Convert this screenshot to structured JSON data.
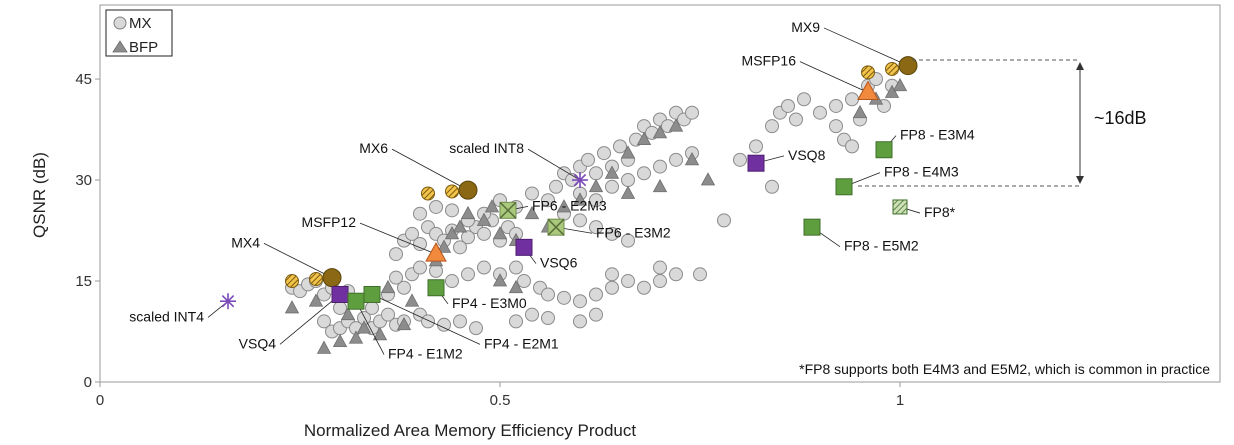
{
  "chart_data": {
    "type": "scatter",
    "xlabel": "Normalized Area Memory Efficiency Product",
    "ylabel": "QSNR (dB)",
    "xlim": [
      0,
      1.4
    ],
    "ylim": [
      0,
      56
    ],
    "xticks": [
      "0",
      "0.5",
      "1"
    ],
    "yticks": [
      "0",
      "15",
      "30",
      "45"
    ],
    "xtick_values": [
      0,
      0.5,
      1
    ],
    "ytick_values": [
      0,
      15,
      30,
      45
    ],
    "grid": false,
    "legend_position": "top-left",
    "legend": [
      "MX",
      "BFP"
    ],
    "footnote": "*FP8 supports both E4M3 and E5M2, which is common in practice",
    "gap_label": "~16dB",
    "colors": {
      "mx": "#d9d9d9",
      "bfp": "#8c8c8c",
      "gold": "#8b6914",
      "gold_light": "#e8b53a",
      "orange": "#f28a3e",
      "purple": "#7030a0",
      "green": "#5f9e3f",
      "green_light": "#a9c97c"
    },
    "mx_points": [
      [
        0.24,
        14
      ],
      [
        0.25,
        13.5
      ],
      [
        0.26,
        14.5
      ],
      [
        0.27,
        15
      ],
      [
        0.28,
        13
      ],
      [
        0.29,
        14
      ],
      [
        0.3,
        12.5
      ],
      [
        0.31,
        13.5
      ],
      [
        0.3,
        11
      ],
      [
        0.28,
        9
      ],
      [
        0.29,
        7.5
      ],
      [
        0.3,
        8
      ],
      [
        0.31,
        9
      ],
      [
        0.32,
        8
      ],
      [
        0.33,
        9.5
      ],
      [
        0.34,
        8
      ],
      [
        0.35,
        9
      ],
      [
        0.36,
        10
      ],
      [
        0.37,
        8.5
      ],
      [
        0.38,
        9
      ],
      [
        0.4,
        10
      ],
      [
        0.41,
        9
      ],
      [
        0.43,
        8.5
      ],
      [
        0.45,
        9
      ],
      [
        0.47,
        8
      ],
      [
        0.34,
        11
      ],
      [
        0.36,
        13
      ],
      [
        0.38,
        14
      ],
      [
        0.37,
        15.5
      ],
      [
        0.39,
        16
      ],
      [
        0.4,
        17
      ],
      [
        0.42,
        16.5
      ],
      [
        0.44,
        15
      ],
      [
        0.46,
        16
      ],
      [
        0.48,
        17
      ],
      [
        0.5,
        16
      ],
      [
        0.52,
        17
      ],
      [
        0.53,
        15
      ],
      [
        0.55,
        14
      ],
      [
        0.56,
        13
      ],
      [
        0.58,
        12.5
      ],
      [
        0.6,
        12
      ],
      [
        0.62,
        13
      ],
      [
        0.64,
        14
      ],
      [
        0.66,
        15
      ],
      [
        0.68,
        14
      ],
      [
        0.7,
        15
      ],
      [
        0.72,
        16
      ],
      [
        0.37,
        19
      ],
      [
        0.38,
        21
      ],
      [
        0.39,
        22
      ],
      [
        0.4,
        20.5
      ],
      [
        0.41,
        23
      ],
      [
        0.42,
        22
      ],
      [
        0.43,
        21
      ],
      [
        0.44,
        22.5
      ],
      [
        0.45,
        20
      ],
      [
        0.46,
        21.5
      ],
      [
        0.47,
        23
      ],
      [
        0.48,
        22
      ],
      [
        0.49,
        24
      ],
      [
        0.5,
        21
      ],
      [
        0.51,
        23
      ],
      [
        0.52,
        22
      ],
      [
        0.4,
        25
      ],
      [
        0.42,
        26
      ],
      [
        0.44,
        25.5
      ],
      [
        0.46,
        24
      ],
      [
        0.48,
        25
      ],
      [
        0.5,
        27
      ],
      [
        0.52,
        26
      ],
      [
        0.54,
        28
      ],
      [
        0.56,
        27
      ],
      [
        0.57,
        29
      ],
      [
        0.58,
        31
      ],
      [
        0.59,
        30
      ],
      [
        0.6,
        32
      ],
      [
        0.61,
        33
      ],
      [
        0.62,
        31
      ],
      [
        0.63,
        34
      ],
      [
        0.64,
        32
      ],
      [
        0.65,
        35
      ],
      [
        0.66,
        33
      ],
      [
        0.67,
        36
      ],
      [
        0.68,
        38
      ],
      [
        0.69,
        37
      ],
      [
        0.7,
        39
      ],
      [
        0.71,
        38
      ],
      [
        0.72,
        40
      ],
      [
        0.73,
        39
      ],
      [
        0.74,
        40
      ],
      [
        0.6,
        28
      ],
      [
        0.62,
        27
      ],
      [
        0.64,
        29
      ],
      [
        0.66,
        30
      ],
      [
        0.68,
        31
      ],
      [
        0.7,
        32
      ],
      [
        0.72,
        33
      ],
      [
        0.74,
        34
      ],
      [
        0.58,
        25
      ],
      [
        0.6,
        24
      ],
      [
        0.62,
        23
      ],
      [
        0.64,
        22
      ],
      [
        0.66,
        21
      ],
      [
        0.52,
        9
      ],
      [
        0.54,
        10
      ],
      [
        0.56,
        9.5
      ],
      [
        0.6,
        9
      ],
      [
        0.62,
        10
      ],
      [
        0.64,
        16
      ],
      [
        0.7,
        17
      ],
      [
        0.75,
        16
      ],
      [
        0.78,
        24
      ],
      [
        0.8,
        33
      ],
      [
        0.82,
        35
      ],
      [
        0.84,
        38
      ],
      [
        0.85,
        40
      ],
      [
        0.86,
        41
      ],
      [
        0.87,
        39
      ],
      [
        0.88,
        42
      ],
      [
        0.9,
        40
      ],
      [
        0.92,
        38
      ],
      [
        0.93,
        36
      ],
      [
        0.94,
        35
      ],
      [
        0.95,
        39
      ],
      [
        0.96,
        44
      ],
      [
        0.97,
        45
      ],
      [
        0.98,
        41
      ],
      [
        0.99,
        44
      ],
      [
        0.84,
        29
      ],
      [
        0.92,
        41
      ],
      [
        0.94,
        42
      ]
    ],
    "bfp_points": [
      [
        0.24,
        11
      ],
      [
        0.27,
        12
      ],
      [
        0.28,
        5
      ],
      [
        0.3,
        6
      ],
      [
        0.32,
        6.5
      ],
      [
        0.33,
        8
      ],
      [
        0.35,
        7
      ],
      [
        0.38,
        8.5
      ],
      [
        0.31,
        10
      ],
      [
        0.36,
        14
      ],
      [
        0.39,
        12
      ],
      [
        0.42,
        18
      ],
      [
        0.43,
        20
      ],
      [
        0.44,
        22
      ],
      [
        0.45,
        23
      ],
      [
        0.46,
        25
      ],
      [
        0.48,
        24
      ],
      [
        0.49,
        26
      ],
      [
        0.5,
        22
      ],
      [
        0.52,
        21
      ],
      [
        0.54,
        25
      ],
      [
        0.56,
        23
      ],
      [
        0.58,
        26
      ],
      [
        0.6,
        27
      ],
      [
        0.62,
        29
      ],
      [
        0.64,
        31
      ],
      [
        0.66,
        34
      ],
      [
        0.68,
        36
      ],
      [
        0.7,
        37
      ],
      [
        0.72,
        38
      ],
      [
        0.74,
        33
      ],
      [
        0.76,
        30
      ],
      [
        0.5,
        15
      ],
      [
        0.52,
        14
      ],
      [
        0.66,
        28
      ],
      [
        0.7,
        29
      ],
      [
        0.95,
        40
      ],
      [
        0.97,
        42
      ],
      [
        0.99,
        43
      ],
      [
        1.0,
        44
      ]
    ],
    "named_points": [
      {
        "name": "MX4",
        "x": 0.29,
        "y": 15.5,
        "marker": "big-circle",
        "color": "gold",
        "label": "MX4",
        "label_x": 0.2,
        "label_y": 20
      },
      {
        "name": "MX4-a",
        "x": 0.24,
        "y": 15,
        "marker": "stripe-circle",
        "color": "gold_light"
      },
      {
        "name": "MX4-b",
        "x": 0.27,
        "y": 15.3,
        "marker": "stripe-circle",
        "color": "gold_light"
      },
      {
        "name": "MX6",
        "x": 0.46,
        "y": 28.5,
        "marker": "big-circle",
        "color": "gold",
        "label": "MX6",
        "label_x": 0.36,
        "label_y": 34
      },
      {
        "name": "MX6-a",
        "x": 0.41,
        "y": 28,
        "marker": "stripe-circle",
        "color": "gold_light"
      },
      {
        "name": "MX6-b",
        "x": 0.44,
        "y": 28.3,
        "marker": "stripe-circle",
        "color": "gold_light"
      },
      {
        "name": "MX9",
        "x": 1.01,
        "y": 47,
        "marker": "big-circle",
        "color": "gold",
        "label": "MX9",
        "label_x": 0.9,
        "label_y": 52
      },
      {
        "name": "MX9-a",
        "x": 0.96,
        "y": 46,
        "marker": "stripe-circle",
        "color": "gold_light"
      },
      {
        "name": "MX9-b",
        "x": 0.99,
        "y": 46.5,
        "marker": "stripe-circle",
        "color": "gold_light"
      },
      {
        "name": "MSFP12",
        "x": 0.42,
        "y": 19,
        "marker": "big-triangle",
        "color": "orange",
        "label": "MSFP12",
        "label_x": 0.32,
        "label_y": 23
      },
      {
        "name": "MSFP16",
        "x": 0.96,
        "y": 43,
        "marker": "big-triangle",
        "color": "orange",
        "label": "MSFP16",
        "label_x": 0.87,
        "label_y": 47
      },
      {
        "name": "scaled INT4",
        "x": 0.16,
        "y": 12,
        "marker": "asterisk",
        "color": "purple",
        "label": "scaled INT4",
        "label_x": 0.13,
        "label_y": 9
      },
      {
        "name": "scaled INT8",
        "x": 0.6,
        "y": 30,
        "marker": "asterisk",
        "color": "purple",
        "label": "scaled INT8",
        "label_x": 0.53,
        "label_y": 34
      },
      {
        "name": "VSQ4",
        "x": 0.3,
        "y": 13,
        "marker": "square",
        "color": "purple",
        "label": "VSQ4",
        "label_x": 0.22,
        "label_y": 5
      },
      {
        "name": "VSQ6",
        "x": 0.53,
        "y": 20,
        "marker": "square",
        "color": "purple",
        "label": "VSQ6",
        "label_x": 0.55,
        "label_y": 17
      },
      {
        "name": "VSQ8",
        "x": 0.82,
        "y": 32.5,
        "marker": "square",
        "color": "purple",
        "label": "VSQ8",
        "label_x": 0.86,
        "label_y": 33
      },
      {
        "name": "FP4 - E1M2",
        "x": 0.32,
        "y": 12,
        "marker": "square",
        "color": "green",
        "label": "FP4 - E1M2",
        "label_x": 0.36,
        "label_y": 3.5
      },
      {
        "name": "FP4 - E2M1",
        "x": 0.34,
        "y": 13,
        "marker": "square",
        "color": "green",
        "label": "FP4 - E2M1",
        "label_x": 0.48,
        "label_y": 5
      },
      {
        "name": "FP4 - E3M0",
        "x": 0.42,
        "y": 14,
        "marker": "square",
        "color": "green",
        "label": "FP4 - E3M0",
        "label_x": 0.44,
        "label_y": 11
      },
      {
        "name": "FP6 - E2M3",
        "x": 0.51,
        "y": 25.5,
        "marker": "cross-square",
        "color": "green_light",
        "label": "FP6 - E2M3",
        "label_x": 0.54,
        "label_y": 25.5
      },
      {
        "name": "FP6 - E3M2",
        "x": 0.57,
        "y": 23,
        "marker": "cross-square",
        "color": "green_light",
        "label": "FP6 - E3M2",
        "label_x": 0.62,
        "label_y": 21.5
      },
      {
        "name": "FP8 - E3M4",
        "x": 0.98,
        "y": 34.5,
        "marker": "square",
        "color": "green",
        "label": "FP8 - E3M4",
        "label_x": 1.0,
        "label_y": 36
      },
      {
        "name": "FP8 - E4M3",
        "x": 0.93,
        "y": 29,
        "marker": "square",
        "color": "green",
        "label": "FP8 - E4M3",
        "label_x": 0.98,
        "label_y": 30.5
      },
      {
        "name": "FP8*",
        "x": 1.0,
        "y": 26,
        "marker": "hatch-square",
        "color": "green",
        "label": "FP8*",
        "label_x": 1.03,
        "label_y": 24.5
      },
      {
        "name": "FP8 - E5M2",
        "x": 0.89,
        "y": 23,
        "marker": "square",
        "color": "green",
        "label": "FP8 - E5M2",
        "label_x": 0.93,
        "label_y": 19.5
      }
    ]
  }
}
